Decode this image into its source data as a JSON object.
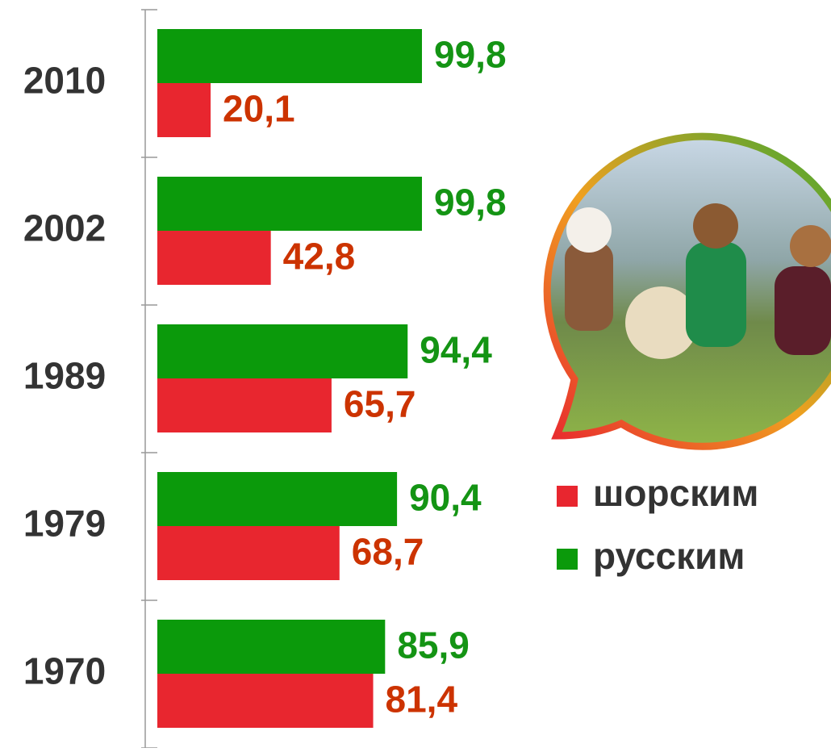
{
  "chart_data": {
    "type": "hbar",
    "categories": [
      "2010",
      "2002",
      "1989",
      "1979",
      "1970"
    ],
    "series": [
      {
        "name": "шорским",
        "color": "#e8262f",
        "label_color": "#cc3300",
        "values": [
          20.1,
          42.8,
          65.7,
          68.7,
          81.4
        ],
        "value_labels": [
          "20,1",
          "42,8",
          "65,7",
          "68,7",
          "81,4"
        ]
      },
      {
        "name": "русским",
        "color": "#0b9a0b",
        "label_color": "#149414",
        "values": [
          99.8,
          99.8,
          94.4,
          90.4,
          85.9
        ],
        "value_labels": [
          "99,8",
          "99,8",
          "94,4",
          "90,4",
          "85,9"
        ]
      }
    ]
  }
}
